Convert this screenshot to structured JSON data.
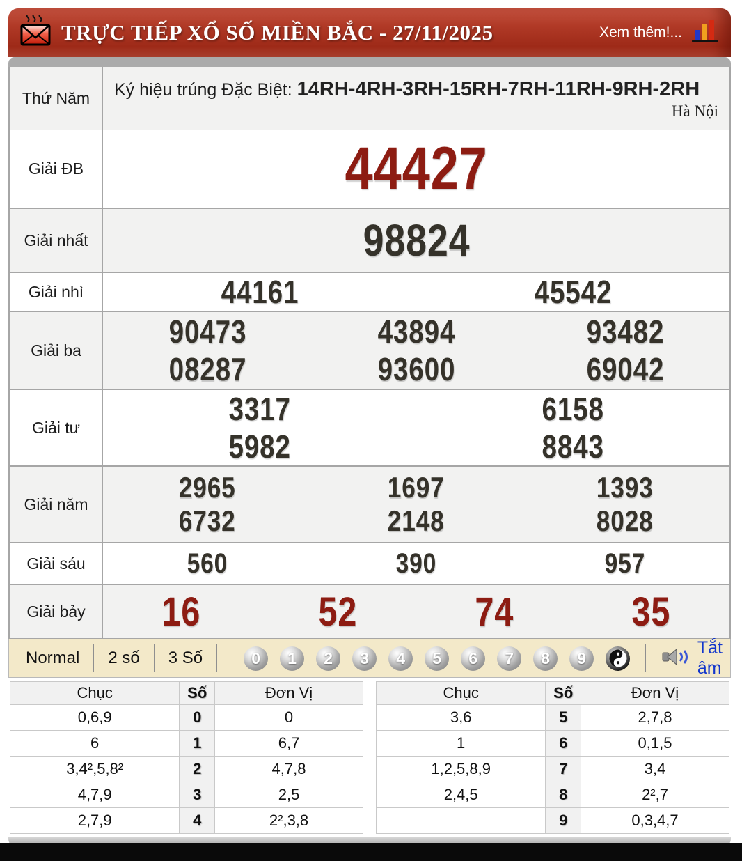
{
  "header": {
    "title": "TRỰC TIẾP XỔ SỐ MIỀN BẮC - 27/11/2025",
    "more_link": "Xem thêm!..."
  },
  "info_row": {
    "day": "Thứ Năm",
    "sign_label": "Ký hiệu trúng Đặc Biệt: ",
    "sign_codes": "14RH-4RH-3RH-15RH-7RH-11RH-9RH-2RH",
    "province": "Hà Nội"
  },
  "results": [
    {
      "label": "Giải ĐB",
      "cols": 1,
      "values": [
        "44427"
      ]
    },
    {
      "label": "Giải nhất",
      "cols": 1,
      "values": [
        "98824"
      ]
    },
    {
      "label": "Giải nhì",
      "cols": 2,
      "values": [
        "44161",
        "45542"
      ]
    },
    {
      "label": "Giải ba",
      "cols": 3,
      "values": [
        "90473",
        "43894",
        "93482",
        "08287",
        "93600",
        "69042"
      ]
    },
    {
      "label": "Giải tư",
      "cols": 2,
      "values": [
        "3317",
        "6158",
        "5982",
        "8843"
      ]
    },
    {
      "label": "Giải năm",
      "cols": 3,
      "values": [
        "2965",
        "1697",
        "1393",
        "6732",
        "2148",
        "8028"
      ]
    },
    {
      "label": "Giải sáu",
      "cols": 3,
      "values": [
        "560",
        "390",
        "957"
      ]
    },
    {
      "label": "Giải bảy",
      "cols": 4,
      "values": [
        "16",
        "52",
        "74",
        "35"
      ]
    }
  ],
  "toolbar": {
    "modes": [
      "Normal",
      "2 số",
      "3 Số"
    ],
    "digits": [
      "0",
      "1",
      "2",
      "3",
      "4",
      "5",
      "6",
      "7",
      "8",
      "9"
    ],
    "mute_label": "Tắt âm"
  },
  "digit_table": {
    "headers": [
      "Chục",
      "Số",
      "Đơn Vị"
    ],
    "left_rows": [
      [
        "0,6,9",
        "0",
        "0"
      ],
      [
        "6",
        "1",
        "6,7"
      ],
      [
        "3,4²,5,8²",
        "2",
        "4,7,8"
      ],
      [
        "4,7,9",
        "3",
        "2,5"
      ],
      [
        "2,7,9",
        "4",
        "2²,3,8"
      ]
    ],
    "right_rows": [
      [
        "3,6",
        "5",
        "2,7,8"
      ],
      [
        "1",
        "6",
        "0,1,5"
      ],
      [
        "1,2,5,8,9",
        "7",
        "3,4"
      ],
      [
        "2,4,5",
        "8",
        "2²,7"
      ],
      [
        "",
        "9",
        "0,3,4,7"
      ]
    ]
  },
  "colors": {
    "header_red": "#a02b19",
    "prize_red": "#8d1c12",
    "prize_dark": "#35322a",
    "toolbar_beige": "#f3e9c9",
    "mute_blue": "#1236cc",
    "row_shade": "#f2f2f1"
  }
}
